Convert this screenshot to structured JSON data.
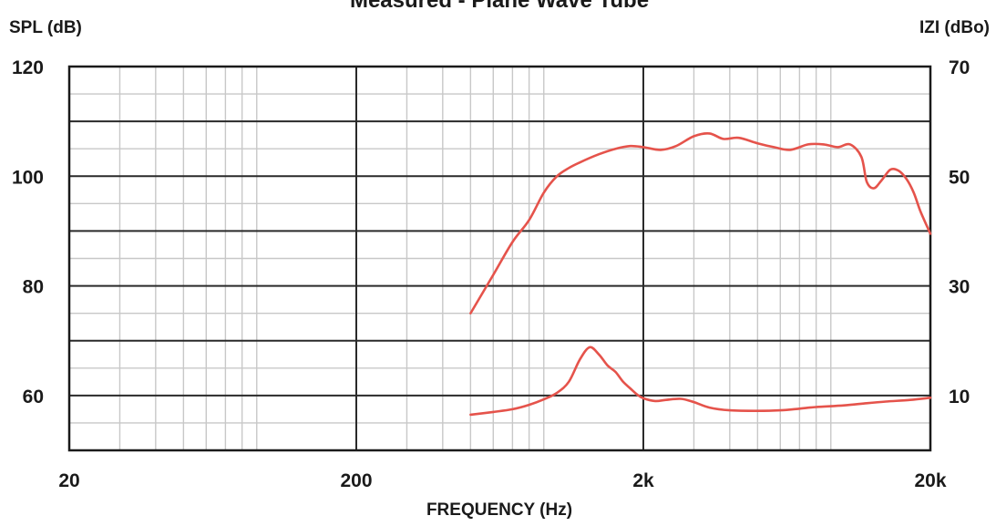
{
  "chart_data": {
    "type": "line",
    "title": "Measured - Plane Wave Tube",
    "xlabel": "FREQUENCY (Hz)",
    "ylabel_left": "SPL (dB)",
    "ylabel_right": "IZI (dBo)",
    "x_scale": "log",
    "xlim": [
      20,
      20000
    ],
    "ylim_left": [
      50,
      120
    ],
    "ylim_right": [
      0,
      70
    ],
    "x_ticks": [
      {
        "value": 20,
        "label": "20"
      },
      {
        "value": 200,
        "label": "200"
      },
      {
        "value": 2000,
        "label": "2k"
      },
      {
        "value": 20000,
        "label": "20k"
      }
    ],
    "y_ticks_left": [
      {
        "value": 120,
        "label": "120"
      },
      {
        "value": 100,
        "label": "100"
      },
      {
        "value": 80,
        "label": "80"
      },
      {
        "value": 60,
        "label": "60"
      }
    ],
    "y_ticks_right": [
      {
        "value": 70,
        "label": "70"
      },
      {
        "value": 50,
        "label": "50"
      },
      {
        "value": 30,
        "label": "30"
      },
      {
        "value": 10,
        "label": "10"
      }
    ],
    "grid": true,
    "line_color": "#e5534b",
    "series": [
      {
        "axis": "left",
        "x": [
          500,
          600,
          700,
          800,
          900,
          1000,
          1100,
          1200,
          1400,
          1600,
          1800,
          2000,
          2300,
          2600,
          3000,
          3400,
          3800,
          4300,
          5000,
          5700,
          6500,
          7500,
          8500,
          9500,
          10500,
          11500,
          12000,
          12700,
          13500,
          14500,
          15500,
          16500,
          17500,
          18500,
          20000
        ],
        "y": [
          75,
          82,
          88,
          92,
          97,
          100,
          101.5,
          102.5,
          104,
          105,
          105.5,
          105.3,
          104.8,
          105.5,
          107.3,
          107.8,
          106.8,
          107.0,
          106.0,
          105.3,
          104.8,
          105.8,
          105.8,
          105.3,
          105.8,
          103.5,
          99.0,
          97.8,
          99.2,
          101.2,
          101.0,
          99.5,
          97.0,
          93.5,
          89.5
        ]
      },
      {
        "axis": "right",
        "x": [
          500,
          600,
          700,
          800,
          900,
          1000,
          1100,
          1200,
          1300,
          1400,
          1500,
          1600,
          1700,
          1800,
          1900,
          2000,
          2200,
          2400,
          2700,
          3000,
          3400,
          4000,
          5000,
          6000,
          7000,
          8000,
          10000,
          12000,
          14000,
          17000,
          20000
        ],
        "y": [
          6.5,
          7.0,
          7.5,
          8.3,
          9.3,
          10.5,
          12.5,
          16.5,
          18.8,
          17.5,
          15.5,
          14.3,
          12.5,
          11.3,
          10.2,
          9.5,
          9.0,
          9.2,
          9.4,
          8.8,
          7.8,
          7.3,
          7.2,
          7.3,
          7.6,
          7.9,
          8.2,
          8.6,
          8.9,
          9.2,
          9.6
        ]
      }
    ]
  }
}
